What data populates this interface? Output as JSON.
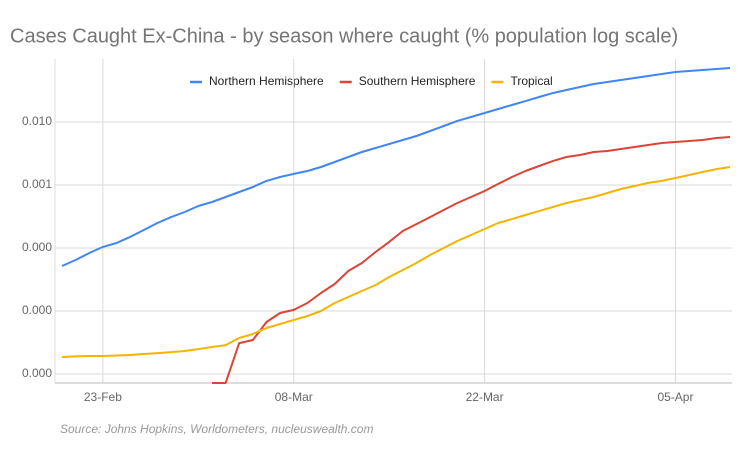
{
  "chart_data": {
    "type": "line",
    "title": "Cases Caught Ex-China - by season where caught (% population log scale)",
    "source": "Source: Johns Hopkins, Worldometers, nucleuswealth.com",
    "categories": [
      null,
      null,
      null,
      "23-Feb",
      null,
      null,
      null,
      null,
      null,
      null,
      null,
      null,
      null,
      null,
      null,
      null,
      null,
      "08-Mar",
      null,
      null,
      null,
      null,
      null,
      null,
      null,
      null,
      null,
      null,
      null,
      null,
      null,
      "22-Mar",
      null,
      null,
      null,
      null,
      null,
      null,
      null,
      null,
      null,
      null,
      null,
      null,
      null,
      "05-Apr",
      null,
      null,
      null,
      null
    ],
    "log_y": true,
    "grid": true,
    "legend": "top",
    "ylim": [
      7.2e-07,
      0.1
    ],
    "yticks": [
      {
        "value": 0.01,
        "label": "0.010"
      },
      0.001,
      {
        "value": 0.0001,
        "label": "0.000"
      },
      {
        "value": 1e-05,
        "label": "0.000"
      },
      {
        "value": 1e-06,
        "label": "0.000"
      }
    ],
    "series": [
      {
        "name": "Northern Hemisphere",
        "color": "#4285f4",
        "values": [
          5.18e-05,
          6.45e-05,
          8.34e-05,
          0.000104,
          0.00012,
          0.00015,
          0.000193,
          0.000249,
          0.00031,
          0.000373,
          0.000464,
          0.000537,
          0.000645,
          0.000775,
          0.000929,
          0.00116,
          0.00134,
          0.0015,
          0.00167,
          0.00193,
          0.00232,
          0.00278,
          0.00334,
          0.00386,
          0.00448,
          0.00518,
          0.006,
          0.0072,
          0.00865,
          0.0104,
          0.012,
          0.0139,
          0.0161,
          0.0186,
          0.0215,
          0.0249,
          0.0288,
          0.0322,
          0.0359,
          0.0401,
          0.0431,
          0.0464,
          0.0499,
          0.0537,
          0.0578,
          0.0622,
          0.0645,
          0.0669,
          0.0693,
          0.072
        ]
      },
      {
        "name": "Southern Hemisphere",
        "color": "#db4437",
        "values": [
          null,
          null,
          null,
          null,
          null,
          null,
          null,
          null,
          null,
          null,
          null,
          7.2e-07,
          7.2e-07,
          3.1e-06,
          3.47e-06,
          6.69e-06,
          9.29e-06,
          1.04e-05,
          1.34e-05,
          1.93e-05,
          2.68e-05,
          4.31e-05,
          5.78e-05,
          8.65e-05,
          0.000125,
          0.000186,
          0.00024,
          0.00031,
          0.000401,
          0.000518,
          0.000645,
          0.000803,
          0.00104,
          0.00134,
          0.00167,
          0.002,
          0.0024,
          0.00278,
          0.00299,
          0.00334,
          0.00347,
          0.00373,
          0.00401,
          0.00431,
          0.00464,
          0.00482,
          0.005,
          0.00518,
          0.00557,
          0.00578
        ]
      },
      {
        "name": "Tropical",
        "color": "#f4b400",
        "values": [
          1.86e-06,
          1.9e-06,
          1.93e-06,
          1.93e-06,
          1.97e-06,
          2e-06,
          2.08e-06,
          2.15e-06,
          2.23e-06,
          2.32e-06,
          2.49e-06,
          2.68e-06,
          2.88e-06,
          3.73e-06,
          4.31e-06,
          5.37e-06,
          6.22e-06,
          7.2e-06,
          8.34e-06,
          1e-05,
          1.34e-05,
          1.67e-05,
          2.08e-05,
          2.59e-05,
          3.47e-05,
          4.48e-05,
          5.78e-05,
          7.75e-05,
          0.0001,
          0.000129,
          0.000161,
          0.0002,
          0.000249,
          0.000288,
          0.000334,
          0.000386,
          0.000448,
          0.000518,
          0.000578,
          0.000645,
          0.000747,
          0.000865,
          0.000964,
          0.00108,
          0.00116,
          0.00129,
          0.00144,
          0.00161,
          0.00179,
          0.00193
        ]
      }
    ]
  }
}
